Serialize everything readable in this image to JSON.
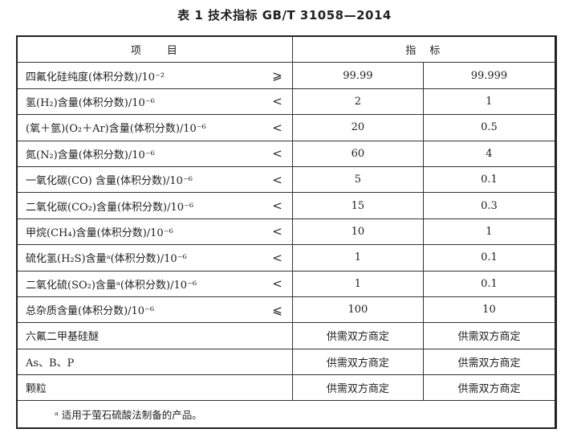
{
  "title": "表 1  技术指标  GB/T 31058—2014",
  "header": {
    "item": "项　　目",
    "spec": "指　标"
  },
  "rows": [
    {
      "item": "四氟化硅纯度(体积分数)/10⁻²",
      "symbol": "⩾",
      "v1": "99.99",
      "v2": "99.999"
    },
    {
      "item": "氢(H₂)含量(体积分数)/10⁻⁶",
      "symbol": "<",
      "v1": "2",
      "v2": "1"
    },
    {
      "item": "(氧＋氩)(O₂＋Ar)含量(体积分数)/10⁻⁶",
      "symbol": "<",
      "v1": "20",
      "v2": "0.5"
    },
    {
      "item": "氮(N₂)含量(体积分数)/10⁻⁶",
      "symbol": "<",
      "v1": "60",
      "v2": "4"
    },
    {
      "item": "一氧化碳(CO) 含量(体积分数)/10⁻⁶",
      "symbol": "<",
      "v1": "5",
      "v2": "0.1"
    },
    {
      "item": "二氧化碳(CO₂)含量(体积分数)/10⁻⁶",
      "symbol": "<",
      "v1": "15",
      "v2": "0.3"
    },
    {
      "item": "甲烷(CH₄)含量(体积分数)/10⁻⁶",
      "symbol": "<",
      "v1": "10",
      "v2": "1"
    },
    {
      "item": "硫化氢(H₂S)含量ᵃ(体积分数)/10⁻⁶",
      "symbol": "<",
      "v1": "1",
      "v2": "0.1"
    },
    {
      "item": "二氧化硫(SO₂)含量ᵃ(体积分数)/10⁻⁶",
      "symbol": "<",
      "v1": "1",
      "v2": "0.1"
    },
    {
      "item": "总杂质含量(体积分数)/10⁻⁶",
      "symbol": "⩽",
      "v1": "100",
      "v2": "10"
    },
    {
      "item": "六氟二甲基硅醚",
      "symbol": "",
      "v1": "供需双方商定",
      "v2": "供需双方商定"
    },
    {
      "item": "As、B、P",
      "symbol": "",
      "v1": "供需双方商定",
      "v2": "供需双方商定"
    },
    {
      "item": "颗粒",
      "symbol": "",
      "v1": "供需双方商定",
      "v2": "供需双方商定"
    }
  ],
  "footnote": "ᵃ  适用于萤石硫酸法制备的产品。"
}
